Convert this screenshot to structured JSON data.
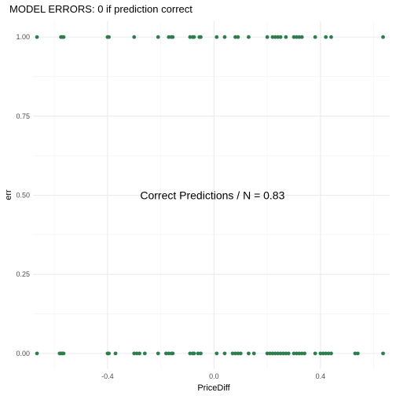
{
  "chart_data": {
    "type": "scatter",
    "title": "MODEL ERRORS: 0 if prediction correct",
    "xlabel": "PriceDiff",
    "ylabel": "err",
    "xlim": [
      -0.68,
      0.66
    ],
    "ylim": [
      -0.05,
      1.05
    ],
    "xticks": [
      -0.4,
      0.0,
      0.4
    ],
    "xtick_labels": [
      "-0.4",
      "0.0",
      "0.4"
    ],
    "yticks": [
      0.0,
      0.25,
      0.5,
      0.75,
      1.0
    ],
    "ytick_labels": [
      "0.00",
      "0.25",
      "0.50",
      "0.75",
      "1.00"
    ],
    "grid": true,
    "legend": "none",
    "point_color": "#2e7d4f",
    "annotation": {
      "text": "Correct Predictions / N =  0.83",
      "x": 0.0,
      "y": 0.5
    },
    "series": [
      {
        "values": [
          {
            "x": -0.665,
            "y": 1
          },
          {
            "x": -0.575,
            "y": 1
          },
          {
            "x": -0.57,
            "y": 1
          },
          {
            "x": -0.565,
            "y": 1
          },
          {
            "x": -0.4,
            "y": 1
          },
          {
            "x": -0.395,
            "y": 1
          },
          {
            "x": -0.3,
            "y": 1
          },
          {
            "x": -0.21,
            "y": 1
          },
          {
            "x": -0.17,
            "y": 1
          },
          {
            "x": -0.16,
            "y": 1
          },
          {
            "x": -0.155,
            "y": 1
          },
          {
            "x": -0.09,
            "y": 1
          },
          {
            "x": -0.08,
            "y": 1
          },
          {
            "x": -0.075,
            "y": 1
          },
          {
            "x": -0.055,
            "y": 1
          },
          {
            "x": -0.05,
            "y": 1
          },
          {
            "x": 0.01,
            "y": 1
          },
          {
            "x": 0.04,
            "y": 1
          },
          {
            "x": 0.08,
            "y": 1
          },
          {
            "x": 0.09,
            "y": 1
          },
          {
            "x": 0.13,
            "y": 1
          },
          {
            "x": 0.2,
            "y": 1
          },
          {
            "x": 0.22,
            "y": 1
          },
          {
            "x": 0.23,
            "y": 1
          },
          {
            "x": 0.24,
            "y": 1
          },
          {
            "x": 0.25,
            "y": 1
          },
          {
            "x": 0.27,
            "y": 1
          },
          {
            "x": 0.3,
            "y": 1
          },
          {
            "x": 0.31,
            "y": 1
          },
          {
            "x": 0.32,
            "y": 1
          },
          {
            "x": 0.33,
            "y": 1
          },
          {
            "x": 0.38,
            "y": 1
          },
          {
            "x": 0.42,
            "y": 1
          },
          {
            "x": 0.44,
            "y": 1
          },
          {
            "x": 0.635,
            "y": 1
          },
          {
            "x": -0.665,
            "y": 0
          },
          {
            "x": -0.58,
            "y": 0
          },
          {
            "x": -0.575,
            "y": 0
          },
          {
            "x": -0.57,
            "y": 0
          },
          {
            "x": -0.565,
            "y": 0
          },
          {
            "x": -0.4,
            "y": 0
          },
          {
            "x": -0.395,
            "y": 0
          },
          {
            "x": -0.37,
            "y": 0
          },
          {
            "x": -0.3,
            "y": 0
          },
          {
            "x": -0.29,
            "y": 0
          },
          {
            "x": -0.28,
            "y": 0
          },
          {
            "x": -0.26,
            "y": 0
          },
          {
            "x": -0.21,
            "y": 0
          },
          {
            "x": -0.18,
            "y": 0
          },
          {
            "x": -0.17,
            "y": 0
          },
          {
            "x": -0.16,
            "y": 0
          },
          {
            "x": -0.155,
            "y": 0
          },
          {
            "x": -0.09,
            "y": 0
          },
          {
            "x": -0.08,
            "y": 0
          },
          {
            "x": -0.075,
            "y": 0
          },
          {
            "x": -0.06,
            "y": 0
          },
          {
            "x": -0.05,
            "y": 0
          },
          {
            "x": 0.01,
            "y": 0
          },
          {
            "x": 0.04,
            "y": 0
          },
          {
            "x": 0.07,
            "y": 0
          },
          {
            "x": 0.08,
            "y": 0
          },
          {
            "x": 0.09,
            "y": 0
          },
          {
            "x": 0.1,
            "y": 0
          },
          {
            "x": 0.13,
            "y": 0
          },
          {
            "x": 0.15,
            "y": 0
          },
          {
            "x": 0.2,
            "y": 0
          },
          {
            "x": 0.21,
            "y": 0
          },
          {
            "x": 0.22,
            "y": 0
          },
          {
            "x": 0.23,
            "y": 0
          },
          {
            "x": 0.24,
            "y": 0
          },
          {
            "x": 0.25,
            "y": 0
          },
          {
            "x": 0.26,
            "y": 0
          },
          {
            "x": 0.27,
            "y": 0
          },
          {
            "x": 0.28,
            "y": 0
          },
          {
            "x": 0.3,
            "y": 0
          },
          {
            "x": 0.31,
            "y": 0
          },
          {
            "x": 0.32,
            "y": 0
          },
          {
            "x": 0.33,
            "y": 0
          },
          {
            "x": 0.34,
            "y": 0
          },
          {
            "x": 0.38,
            "y": 0
          },
          {
            "x": 0.4,
            "y": 0
          },
          {
            "x": 0.41,
            "y": 0
          },
          {
            "x": 0.42,
            "y": 0
          },
          {
            "x": 0.43,
            "y": 0
          },
          {
            "x": 0.44,
            "y": 0
          },
          {
            "x": 0.53,
            "y": 0
          },
          {
            "x": 0.54,
            "y": 0
          },
          {
            "x": 0.635,
            "y": 0
          }
        ]
      }
    ]
  }
}
